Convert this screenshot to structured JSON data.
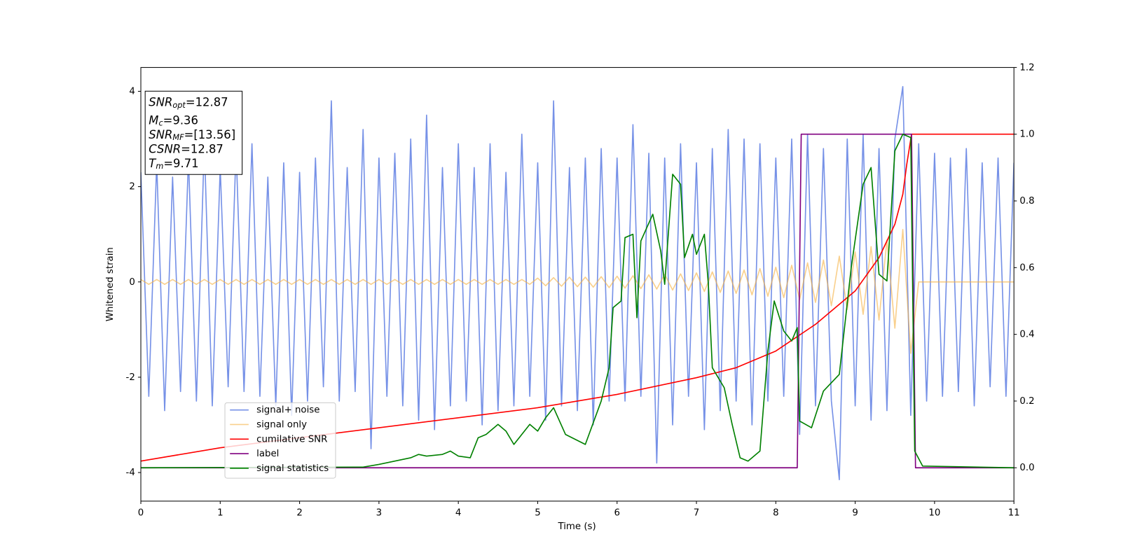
{
  "chart_data": {
    "type": "line",
    "xlabel": "Time (s)",
    "ylabel": "Whitened strain",
    "xlim": [
      0,
      11
    ],
    "ylim": [
      -4.6,
      4.5
    ],
    "y2lim": [
      -0.1,
      1.2
    ],
    "xticks": [
      0,
      1,
      2,
      3,
      4,
      5,
      6,
      7,
      8,
      9,
      10,
      11
    ],
    "yticks": [
      -4,
      -2,
      0,
      2,
      4
    ],
    "y2ticks": [
      {
        "value": 0,
        "label": "0.0"
      },
      0.2,
      0.4,
      0.6,
      0.8,
      {
        "value": 1,
        "label": "1.0"
      },
      1.2
    ],
    "legend": "lower left",
    "annotations": [
      {
        "text": "SNR",
        "sub": "opt",
        "rest": "=12.87"
      },
      {
        "text": "M",
        "sub": "c",
        "rest": "=9.36"
      },
      {
        "text": "SNR",
        "sub": "MF",
        "rest": "=[13.56]"
      },
      {
        "text": "CSNR",
        "rest": "=12.87"
      },
      {
        "text": "T",
        "sub": "m",
        "rest": "=9.71"
      }
    ],
    "series": [
      {
        "name": "signal+ noise",
        "color": "#6f8be6",
        "opacity": 0.95,
        "x": [
          0,
          0.1,
          0.2,
          0.3,
          0.4,
          0.5,
          0.6,
          0.7,
          0.8,
          0.9,
          1,
          1.1,
          1.2,
          1.3,
          1.4,
          1.5,
          1.6,
          1.7,
          1.8,
          1.9,
          2,
          2.1,
          2.2,
          2.3,
          2.4,
          2.5,
          2.6,
          2.7,
          2.8,
          2.9,
          3,
          3.1,
          3.2,
          3.3,
          3.4,
          3.5,
          3.6,
          3.7,
          3.8,
          3.9,
          4,
          4.1,
          4.2,
          4.3,
          4.4,
          4.5,
          4.6,
          4.7,
          4.8,
          4.9,
          5,
          5.1,
          5.2,
          5.3,
          5.4,
          5.5,
          5.6,
          5.7,
          5.8,
          5.9,
          6,
          6.1,
          6.2,
          6.3,
          6.4,
          6.5,
          6.6,
          6.7,
          6.8,
          6.9,
          7,
          7.1,
          7.2,
          7.3,
          7.4,
          7.5,
          7.6,
          7.7,
          7.8,
          7.9,
          8,
          8.1,
          8.2,
          8.3,
          8.4,
          8.5,
          8.6,
          8.7,
          8.8,
          8.9,
          9,
          9.1,
          9.2,
          9.3,
          9.4,
          9.5,
          9.6,
          9.7,
          9.8,
          9.9,
          10,
          10.1,
          10.2,
          10.3,
          10.4,
          10.5,
          10.6,
          10.7,
          10.8,
          10.9,
          11
        ],
        "values": [
          2.3,
          -2.4,
          2.5,
          -2.7,
          2.2,
          -2.3,
          2.6,
          -2.5,
          2.9,
          -2.6,
          2.4,
          -2.2,
          2.8,
          -2.3,
          2.9,
          -2.4,
          2.2,
          -2.6,
          2.5,
          -2.8,
          2.3,
          -2.5,
          2.6,
          -2.2,
          3.8,
          -2.5,
          2.4,
          -2.3,
          3.2,
          -3.5,
          2.6,
          -2.4,
          2.7,
          -2.6,
          3.0,
          -2.9,
          3.5,
          -3.1,
          2.4,
          -2.6,
          2.9,
          -2.5,
          2.4,
          -3.0,
          2.9,
          -2.7,
          2.3,
          -2.6,
          3.1,
          -2.4,
          2.5,
          -2.9,
          3.8,
          -2.6,
          2.4,
          -2.7,
          2.6,
          -3.0,
          2.8,
          -2.5,
          2.6,
          -2.5,
          3.3,
          -2.4,
          2.7,
          -3.8,
          2.6,
          -3.0,
          2.9,
          -2.4,
          2.5,
          -3.1,
          2.8,
          -2.7,
          3.2,
          -2.5,
          3.0,
          -3.0,
          2.9,
          -2.5,
          2.6,
          -2.4,
          3.0,
          -3.2,
          3.1,
          -2.6,
          2.8,
          -2.5,
          -4.15,
          3.0,
          -2.6,
          3.1,
          -2.9,
          2.8,
          -2.7,
          3.0,
          4.1,
          -2.8,
          2.9,
          -2.5,
          2.7,
          -2.4,
          2.6,
          -2.3,
          2.8,
          -2.6,
          2.5,
          -2.2,
          2.6,
          -2.4,
          2.5
        ]
      },
      {
        "name": "signal only",
        "color": "#f5b041",
        "opacity": 0.6,
        "x": [
          0,
          0.1,
          0.2,
          0.3,
          0.4,
          0.5,
          0.6,
          0.7,
          0.8,
          0.9,
          1,
          1.1,
          1.2,
          1.3,
          1.4,
          1.5,
          1.6,
          1.7,
          1.8,
          1.9,
          2,
          2.1,
          2.2,
          2.3,
          2.4,
          2.5,
          2.6,
          2.7,
          2.8,
          2.9,
          3,
          3.1,
          3.2,
          3.3,
          3.4,
          3.5,
          3.6,
          3.7,
          3.8,
          3.9,
          4,
          4.1,
          4.2,
          4.3,
          4.4,
          4.5,
          4.6,
          4.7,
          4.8,
          4.9,
          5,
          5.1,
          5.2,
          5.3,
          5.4,
          5.5,
          5.6,
          5.7,
          5.8,
          5.9,
          6,
          6.1,
          6.2,
          6.3,
          6.4,
          6.5,
          6.6,
          6.7,
          6.8,
          6.9,
          7,
          7.1,
          7.2,
          7.3,
          7.4,
          7.5,
          7.6,
          7.7,
          7.8,
          7.9,
          8,
          8.1,
          8.2,
          8.3,
          8.4,
          8.5,
          8.6,
          8.7,
          8.8,
          8.9,
          9,
          9.1,
          9.2,
          9.3,
          9.4,
          9.5,
          9.6,
          9.7,
          9.8,
          9.9,
          10,
          10.1,
          10.2,
          10.3,
          10.4,
          10.5,
          10.6,
          10.7,
          10.8,
          10.9,
          11
        ],
        "values": [
          0.05,
          -0.05,
          0.05,
          -0.05,
          0.05,
          -0.05,
          0.05,
          -0.05,
          0.05,
          -0.05,
          0.05,
          -0.05,
          0.05,
          -0.05,
          0.05,
          -0.05,
          0.05,
          -0.05,
          0.05,
          -0.05,
          0.05,
          -0.05,
          0.05,
          -0.05,
          0.05,
          -0.05,
          0.05,
          -0.05,
          0.05,
          -0.05,
          0.05,
          -0.05,
          0.05,
          -0.05,
          0.05,
          -0.05,
          0.05,
          -0.05,
          0.05,
          -0.05,
          0.05,
          -0.05,
          0.05,
          -0.05,
          0.05,
          -0.05,
          0.05,
          -0.05,
          0.05,
          -0.05,
          0.08,
          -0.08,
          0.09,
          -0.09,
          0.1,
          -0.1,
          0.1,
          -0.11,
          0.11,
          -0.12,
          0.12,
          -0.13,
          0.13,
          -0.14,
          0.15,
          -0.15,
          0.16,
          -0.17,
          0.17,
          -0.18,
          0.19,
          -0.2,
          0.21,
          -0.22,
          0.23,
          -0.24,
          0.25,
          -0.27,
          0.28,
          -0.3,
          0.31,
          -0.33,
          0.35,
          -0.37,
          0.4,
          -0.43,
          0.46,
          -0.5,
          0.54,
          -0.58,
          0.63,
          -0.68,
          0.74,
          -0.8,
          0.88,
          -0.97,
          1.1,
          -1.5,
          0,
          0,
          0,
          0,
          0,
          0,
          0,
          0,
          0,
          0,
          0,
          0,
          0
        ]
      },
      {
        "name": "cumilative SNR",
        "color": "#ff0000",
        "axis": "y2",
        "x": [
          0,
          1,
          2,
          3,
          4,
          5,
          6,
          7,
          7.5,
          8,
          8.5,
          9,
          9.3,
          9.5,
          9.6,
          9.65,
          9.71,
          11
        ],
        "values": [
          0.02,
          0.06,
          0.09,
          0.12,
          0.15,
          0.18,
          0.22,
          0.27,
          0.3,
          0.35,
          0.43,
          0.53,
          0.63,
          0.73,
          0.82,
          0.91,
          1,
          1
        ]
      },
      {
        "name": "label",
        "color": "#800080",
        "axis": "y2",
        "x": [
          0,
          8.27,
          8.32,
          9.71,
          9.76,
          11
        ],
        "values": [
          0,
          0,
          1,
          1,
          0,
          0
        ]
      },
      {
        "name": "signal statistics",
        "color": "#008000",
        "axis": "y2",
        "x": [
          0,
          2.8,
          3.0,
          3.2,
          3.4,
          3.5,
          3.6,
          3.8,
          3.9,
          4.0,
          4.15,
          4.25,
          4.35,
          4.5,
          4.6,
          4.7,
          4.9,
          5.0,
          5.1,
          5.2,
          5.35,
          5.6,
          5.8,
          5.9,
          5.95,
          6.05,
          6.1,
          6.2,
          6.25,
          6.3,
          6.45,
          6.55,
          6.6,
          6.7,
          6.8,
          6.85,
          6.95,
          7.0,
          7.1,
          7.15,
          7.2,
          7.35,
          7.45,
          7.55,
          7.65,
          7.8,
          7.9,
          7.98,
          8.1,
          8.2,
          8.27,
          8.3,
          8.45,
          8.6,
          8.8,
          8.95,
          9.1,
          9.2,
          9.3,
          9.4,
          9.5,
          9.6,
          9.7,
          9.75,
          9.85,
          11
        ],
        "values": [
          0,
          0.002,
          0.01,
          0.02,
          0.03,
          0.04,
          0.035,
          0.04,
          0.05,
          0.035,
          0.03,
          0.09,
          0.1,
          0.13,
          0.11,
          0.07,
          0.13,
          0.11,
          0.15,
          0.18,
          0.1,
          0.07,
          0.2,
          0.3,
          0.48,
          0.5,
          0.69,
          0.7,
          0.45,
          0.68,
          0.76,
          0.65,
          0.55,
          0.88,
          0.85,
          0.63,
          0.7,
          0.64,
          0.7,
          0.55,
          0.3,
          0.24,
          0.13,
          0.03,
          0.02,
          0.05,
          0.35,
          0.5,
          0.41,
          0.38,
          0.42,
          0.14,
          0.12,
          0.23,
          0.28,
          0.6,
          0.85,
          0.9,
          0.58,
          0.56,
          0.95,
          1,
          0.99,
          0.05,
          0.005,
          0
        ]
      }
    ]
  }
}
